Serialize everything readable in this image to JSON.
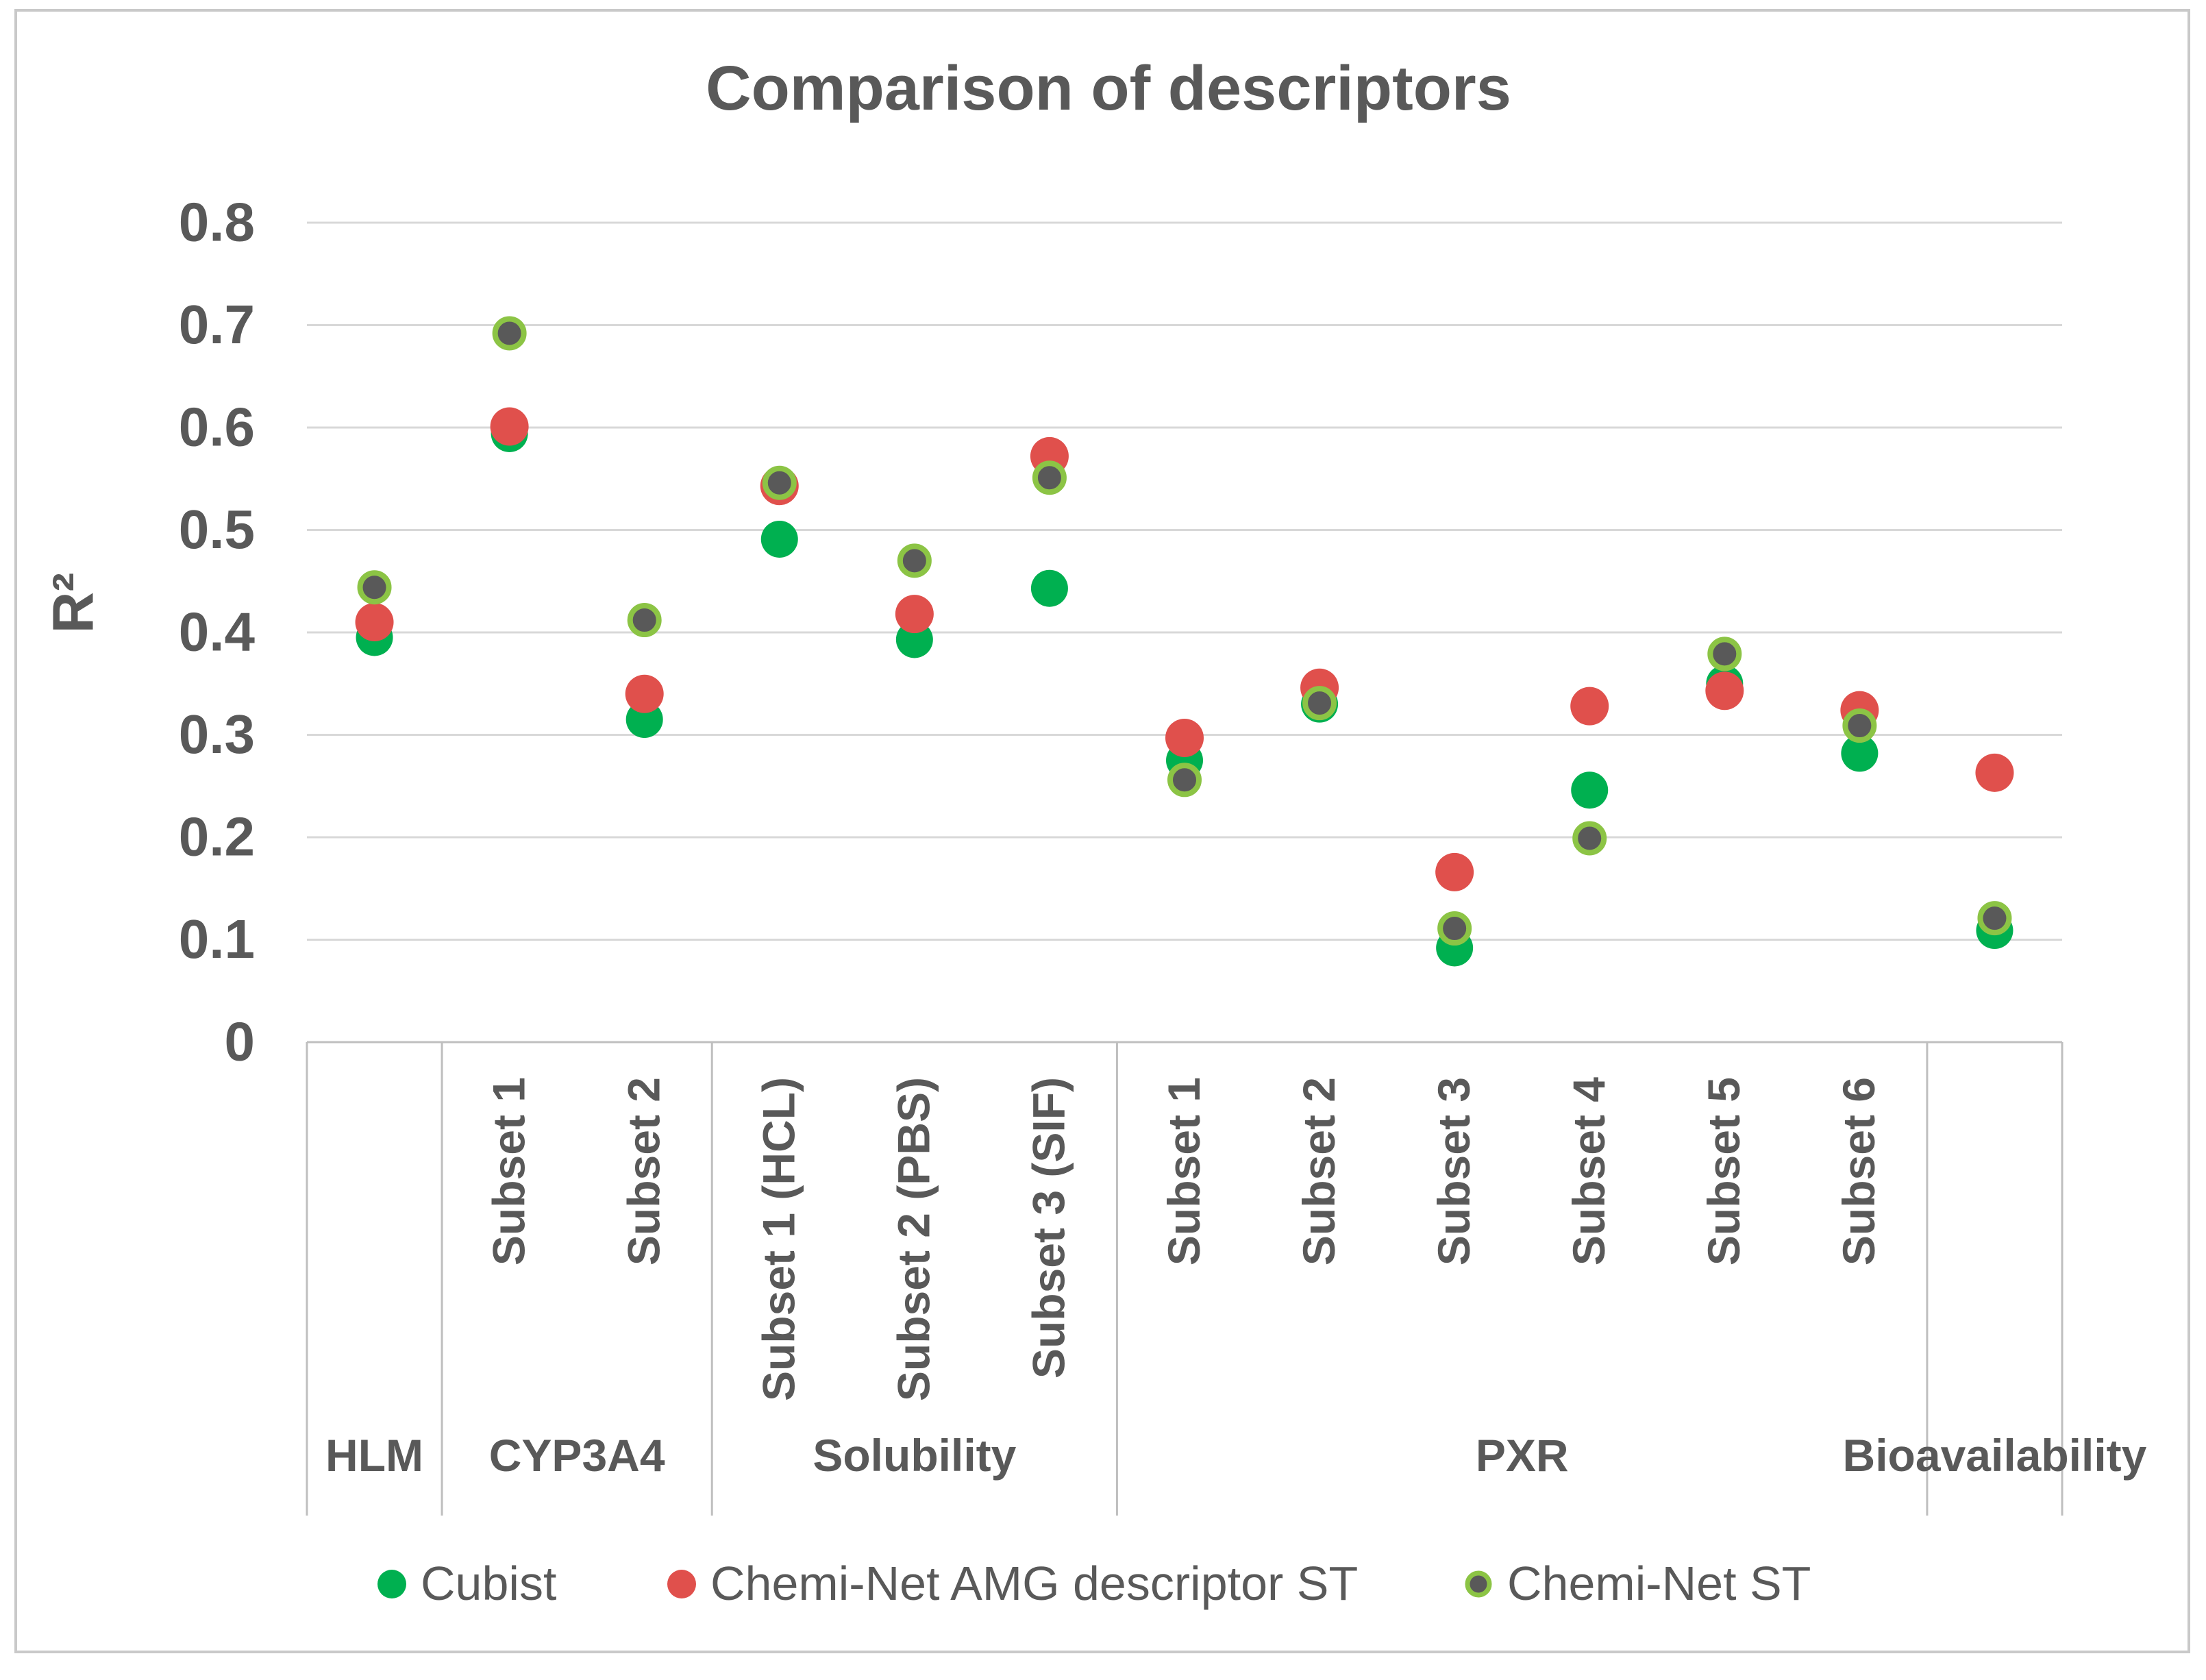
{
  "figure": {
    "background": "#FFFFFF",
    "border_color": "#C9C9C9"
  },
  "colors": {
    "gridline": "#D8D8D8",
    "table_line": "#BFBFBF",
    "text": "#595959",
    "cubist_green": "#00B050",
    "amg_red": "#E0504C",
    "st_gray": "#595959",
    "st_ring_green": "#8CC445"
  },
  "chart_data": {
    "type": "scatter",
    "title": "Comparison of descriptors",
    "ylabel": "R²",
    "xlabel": "",
    "ylim": [
      0,
      0.8
    ],
    "yticks": [
      0,
      0.1,
      0.2,
      0.3,
      0.4,
      0.5,
      0.6,
      0.7,
      0.8
    ],
    "ytick_labels": [
      "0",
      "0.1",
      "0.2",
      "0.3",
      "0.4",
      "0.5",
      "0.6",
      "0.7",
      "0.8"
    ],
    "grid": true,
    "legend_position": "bottom",
    "groups": [
      {
        "label": "HLM",
        "subsets": [
          ""
        ]
      },
      {
        "label": "CYP3A4",
        "subsets": [
          "Subset 1",
          "Subset 2"
        ]
      },
      {
        "label": "Solubility",
        "subsets": [
          "Subset 1 (HCL)",
          "Subset 2 (PBS)",
          "Subset 3 (SIF)"
        ]
      },
      {
        "label": "PXR",
        "subsets": [
          "Subset 1",
          "Subset 2",
          "Subset 3",
          "Subset 4",
          "Subset 5",
          "Subset 6"
        ]
      },
      {
        "label": "Bioavailability",
        "subsets": [
          ""
        ]
      }
    ],
    "series": [
      {
        "name": "Cubist",
        "color": "#00B050",
        "marker": "circle",
        "values": [
          0.395,
          0.594,
          0.315,
          0.491,
          0.393,
          0.443,
          0.275,
          0.33,
          0.092,
          0.246,
          0.35,
          0.282,
          0.109
        ]
      },
      {
        "name": "Chemi-Net AMG descriptor ST",
        "color": "#E0504C",
        "marker": "circle",
        "values": [
          0.41,
          0.601,
          0.34,
          0.543,
          0.418,
          0.572,
          0.297,
          0.346,
          0.166,
          0.328,
          0.343,
          0.324,
          0.263
        ]
      },
      {
        "name": "Chemi-Net ST",
        "color": "#595959",
        "ring_color": "#8CC445",
        "marker": "ring-circle",
        "values": [
          0.444,
          0.692,
          0.412,
          0.546,
          0.47,
          0.551,
          0.256,
          0.331,
          0.111,
          0.199,
          0.379,
          0.309,
          0.121
        ]
      }
    ]
  }
}
